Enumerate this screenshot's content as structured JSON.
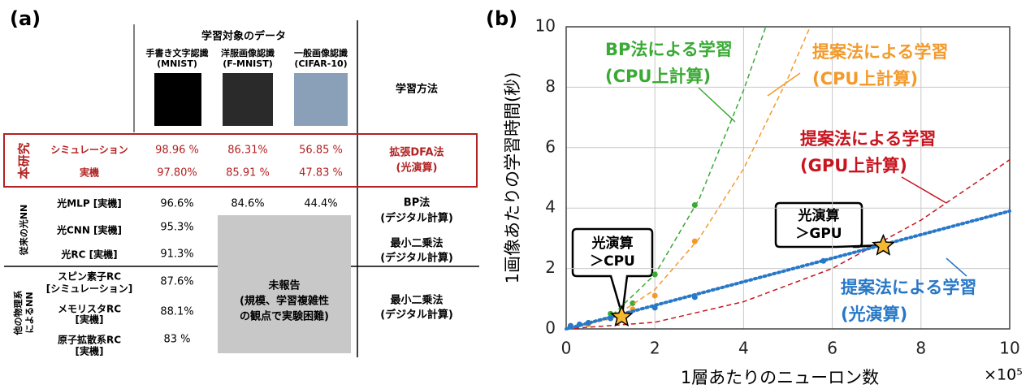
{
  "panel_a": {
    "label": "(a)",
    "header": "学習対象のデータ",
    "datasets": [
      [
        "手書き文字認識",
        "(MNIST)"
      ],
      [
        "洋服画像認識",
        "(F-MNIST)"
      ],
      [
        "一般画像認識",
        "(CIFAR-10)"
      ]
    ],
    "method_header": "学習方法",
    "groups": [
      {
        "label": [
          "本研究"
        ],
        "rows": [
          {
            "name": [
              "シミュレーション"
            ],
            "values": [
              "98.96 %",
              "86.31%",
              "56.85 %"
            ]
          },
          {
            "name": [
              "実機"
            ],
            "values": [
              "97.80%",
              "85.91 %",
              "47.83 %"
            ]
          }
        ],
        "methods": [
          [
            "拡張DFA法",
            "(光演算)"
          ]
        ]
      },
      {
        "label": [
          "従来の光NN"
        ],
        "rows": [
          {
            "name": [
              "光MLP [実機]"
            ],
            "values": [
              "96.6%",
              "84.6%",
              "44.4%"
            ]
          },
          {
            "name": [
              "光CNN [実機]"
            ],
            "values": [
              "95.3%"
            ]
          },
          {
            "name": [
              "光RC [実機]"
            ],
            "values": [
              "91.3%"
            ]
          }
        ],
        "methods": [
          [
            "BP法",
            "(デジタル計算)"
          ],
          [
            "最小二乗法",
            "(デジタル計算)"
          ]
        ]
      },
      {
        "label": [
          "他の物理系",
          "によるNN"
        ],
        "rows": [
          {
            "name": [
              "スピン素子RC",
              "[シミュレーション]"
            ],
            "values": [
              "87.6%"
            ]
          },
          {
            "name": [
              "メモリスタRC",
              "[実機]"
            ],
            "values": [
              "88.1%"
            ]
          },
          {
            "name": [
              "原子拡散系RC",
              "[実機]"
            ],
            "values": [
              "83 %"
            ]
          }
        ],
        "methods": [
          [
            "最小二乗法",
            "(デジタル計算)"
          ]
        ]
      }
    ],
    "unreported": [
      "未報告",
      "(規模、学習複雑性",
      "の観点で実験困難)"
    ]
  },
  "chart_data": {
    "type": "scatter",
    "panel_label": "(b)",
    "x_label": "1層あたりのニューロン数",
    "y_label": "1画像あたりの学習時間(秒)",
    "x_multiplier": "×10⁵",
    "xlim": [
      0,
      10
    ],
    "ylim": [
      0,
      10
    ],
    "xticks": [
      0,
      2,
      4,
      6,
      8,
      10
    ],
    "yticks": [
      0,
      2,
      4,
      6,
      8,
      10
    ],
    "grid": true,
    "series": [
      {
        "name": [
          "BP法による学習",
          "(CPU上計算)"
        ],
        "color": "#3aaa35",
        "x": [
          0.1,
          0.5,
          1.0,
          1.5,
          2.0,
          2.9
        ],
        "values": [
          0.1,
          0.2,
          0.5,
          0.85,
          1.8,
          4.1
        ],
        "fit_x": [
          0,
          1,
          2,
          3,
          4,
          4.5
        ],
        "fit_values": [
          0,
          0.4,
          1.8,
          4.3,
          7.9,
          10
        ]
      },
      {
        "name": [
          "提案法による学習",
          "(CPU上計算)"
        ],
        "color": "#f39a2b",
        "x": [
          0.1,
          0.5,
          1.0,
          1.5,
          2.0,
          2.9
        ],
        "values": [
          0.1,
          0.15,
          0.35,
          0.65,
          1.1,
          2.9
        ],
        "fit_x": [
          0,
          1,
          2,
          3,
          4,
          5,
          5.5
        ],
        "fit_values": [
          0,
          0.33,
          1.3,
          3,
          5.3,
          8.3,
          10
        ]
      },
      {
        "name": [
          "提案法による学習",
          "(GPU上計算)"
        ],
        "color": "#c8141e",
        "x": [],
        "values": [],
        "fit_x": [
          0,
          2,
          4,
          6,
          8,
          10
        ],
        "fit_values": [
          0,
          0.22,
          0.9,
          2,
          3.6,
          5.6
        ]
      },
      {
        "name": [
          "提案法による学習",
          "(光演算)"
        ],
        "color": "#2878c8",
        "x": [
          0.1,
          0.3,
          0.5,
          1.0,
          2.0,
          2.9,
          5.8
        ],
        "values": [
          0.1,
          0.15,
          0.2,
          0.35,
          0.7,
          1.05,
          2.25
        ],
        "fit_x": [
          0,
          10
        ],
        "fit_values": [
          0,
          3.9
        ]
      }
    ],
    "crossovers": {
      "x": [
        1.25,
        7.15
      ],
      "values": [
        0.4,
        2.75
      ],
      "labels": [
        [
          "光演算",
          "＞CPU"
        ],
        [
          "光演算",
          "＞GPU"
        ]
      ]
    }
  }
}
